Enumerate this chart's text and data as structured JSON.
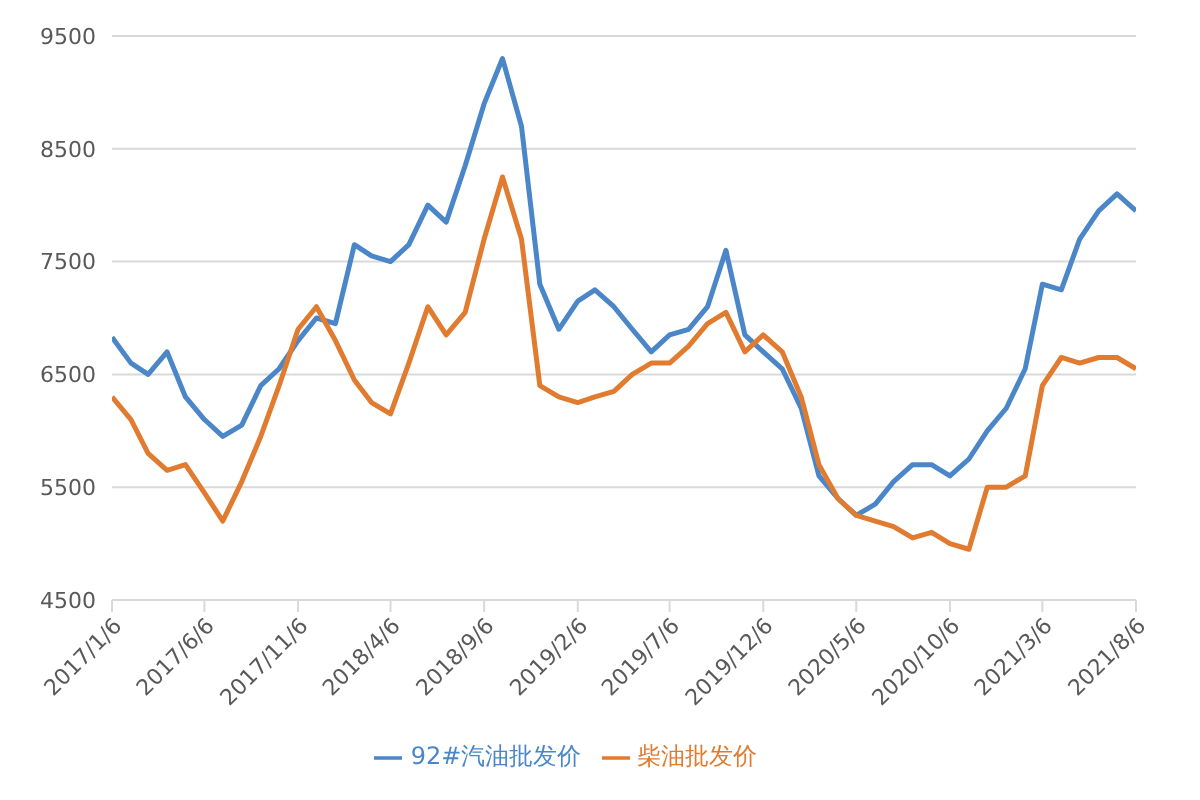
{
  "chart_data": {
    "type": "line",
    "x": [
      "2017-01-06",
      "2017-02-06",
      "2017-03-06",
      "2017-04-06",
      "2017-05-06",
      "2017-06-06",
      "2017-07-06",
      "2017-08-06",
      "2017-09-06",
      "2017-10-06",
      "2017-11-06",
      "2017-12-06",
      "2018-01-06",
      "2018-02-06",
      "2018-03-06",
      "2018-04-06",
      "2018-05-06",
      "2018-06-06",
      "2018-07-06",
      "2018-08-06",
      "2018-09-06",
      "2018-10-06",
      "2018-11-06",
      "2018-12-06",
      "2019-01-06",
      "2019-02-06",
      "2019-03-06",
      "2019-04-06",
      "2019-05-06",
      "2019-06-06",
      "2019-07-06",
      "2019-08-06",
      "2019-09-06",
      "2019-10-06",
      "2019-11-06",
      "2019-12-06",
      "2020-01-06",
      "2020-02-06",
      "2020-03-06",
      "2020-04-06",
      "2020-05-06",
      "2020-06-06",
      "2020-07-06",
      "2020-08-06",
      "2020-09-06",
      "2020-10-06",
      "2020-11-06",
      "2020-12-06",
      "2021-01-06",
      "2021-02-06",
      "2021-03-06",
      "2021-04-06",
      "2021-05-06",
      "2021-06-06",
      "2021-07-06",
      "2021-08-06"
    ],
    "series": [
      {
        "name": "92#汽油批发价",
        "color": "#4a86c8",
        "values": [
          6830,
          6600,
          6500,
          6700,
          6300,
          6100,
          5950,
          6050,
          6400,
          6550,
          6800,
          7000,
          6950,
          7650,
          7550,
          7500,
          7650,
          8000,
          7850,
          8350,
          8900,
          9300,
          8700,
          7300,
          6900,
          7150,
          7250,
          7100,
          6900,
          6700,
          6850,
          6900,
          7100,
          7600,
          6850,
          6700,
          6550,
          6200,
          5600,
          5400,
          5250,
          5350,
          5550,
          5700,
          5700,
          5600,
          5750,
          6000,
          6200,
          6550,
          7300,
          7250,
          7700,
          7950,
          8100,
          7950
        ]
      },
      {
        "name": "柴油批发价",
        "color": "#e07b30",
        "values": [
          6300,
          6100,
          5800,
          5650,
          5700,
          5450,
          5200,
          5550,
          5950,
          6400,
          6900,
          7100,
          6800,
          6450,
          6250,
          6150,
          6600,
          7100,
          6850,
          7050,
          7700,
          8250,
          7700,
          6400,
          6300,
          6250,
          6300,
          6350,
          6500,
          6600,
          6600,
          6750,
          6950,
          7050,
          6700,
          6850,
          6700,
          6300,
          5700,
          5400,
          5250,
          5200,
          5150,
          5050,
          5100,
          5000,
          4950,
          5500,
          5500,
          5600,
          6400,
          6650,
          6600,
          6650,
          6650,
          6550
        ]
      }
    ],
    "xlim": [
      "2017-01-06",
      "2021-08-06"
    ],
    "xticks": [
      {
        "value": "2017-01-06",
        "label": "2017/1/6"
      },
      {
        "value": "2017-06-06",
        "label": "2017/6/6"
      },
      {
        "value": "2017-11-06",
        "label": "2017/11/6"
      },
      {
        "value": "2018-04-06",
        "label": "2018/4/6"
      },
      {
        "value": "2018-09-06",
        "label": "2018/9/6"
      },
      {
        "value": "2019-02-06",
        "label": "2019/2/6"
      },
      {
        "value": "2019-07-06",
        "label": "2019/7/6"
      },
      {
        "value": "2019-12-06",
        "label": "2019/12/6"
      },
      {
        "value": "2020-05-06",
        "label": "2020/5/6"
      },
      {
        "value": "2020-10-06",
        "label": "2020/10/6"
      },
      {
        "value": "2021-03-06",
        "label": "2021/3/6"
      },
      {
        "value": "2021-08-06",
        "label": "2021/8/6"
      }
    ],
    "ylim": [
      4500,
      9500
    ],
    "yticks": [
      4500,
      5500,
      6500,
      7500,
      8500,
      9500
    ],
    "grid": "y",
    "legend": "bottom",
    "marker": "none",
    "line_style": "solid"
  }
}
